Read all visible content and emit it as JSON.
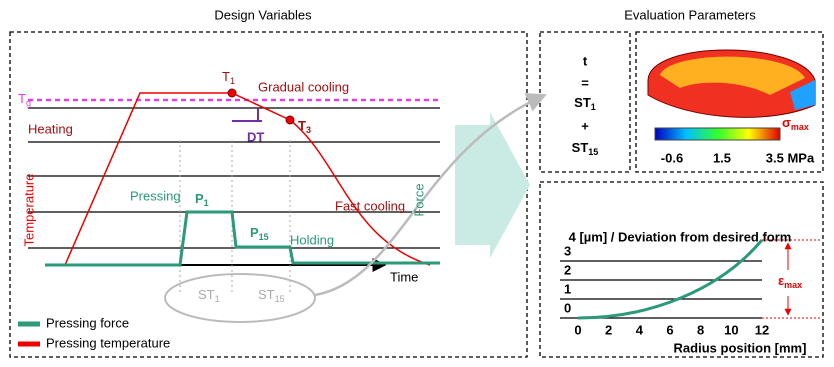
{
  "left": {
    "title": "Design Variables",
    "labels": {
      "t1": {
        "base": "T",
        "sub": "1"
      },
      "tg": {
        "base": "T",
        "sub": "g"
      },
      "t3": {
        "base": "T",
        "sub": "3"
      },
      "gradual": "Gradual cooling",
      "heating": "Heating",
      "dt": "DT",
      "temperature": "Temperature",
      "fast": "Fast cooling",
      "pressing": "Pressing",
      "p1": {
        "base": "P",
        "sub": "1"
      },
      "p15": {
        "base": "P",
        "sub": "15"
      },
      "holding": "Holding",
      "force": "Force",
      "time": "Time",
      "st1": {
        "base": "ST",
        "sub": "1"
      },
      "st15": {
        "base": "ST",
        "sub": "15"
      }
    },
    "legend": [
      "Pressing force",
      "Pressing temperature"
    ]
  },
  "right": {
    "title": "Evaluation Parameters",
    "formula": {
      "t": "t",
      "eq": "=",
      "st1": {
        "base": "ST",
        "sub": "1"
      },
      "plus": "+",
      "st15": {
        "base": "ST",
        "sub": "15"
      }
    },
    "stress": {
      "sigma": {
        "base": "σ",
        "sub": "max"
      },
      "scale": [
        "-0.6",
        "1.5",
        "3.5 MPa"
      ]
    },
    "deviation": {
      "title": "4 [µm] / Deviation from desired form",
      "xlabel": "Radius position [mm]",
      "xticks": [
        0,
        2,
        4,
        6,
        8,
        10,
        12
      ],
      "yticks": [
        0,
        1,
        2,
        3
      ],
      "epsilon": {
        "base": "ε",
        "sub": "max"
      }
    }
  }
}
